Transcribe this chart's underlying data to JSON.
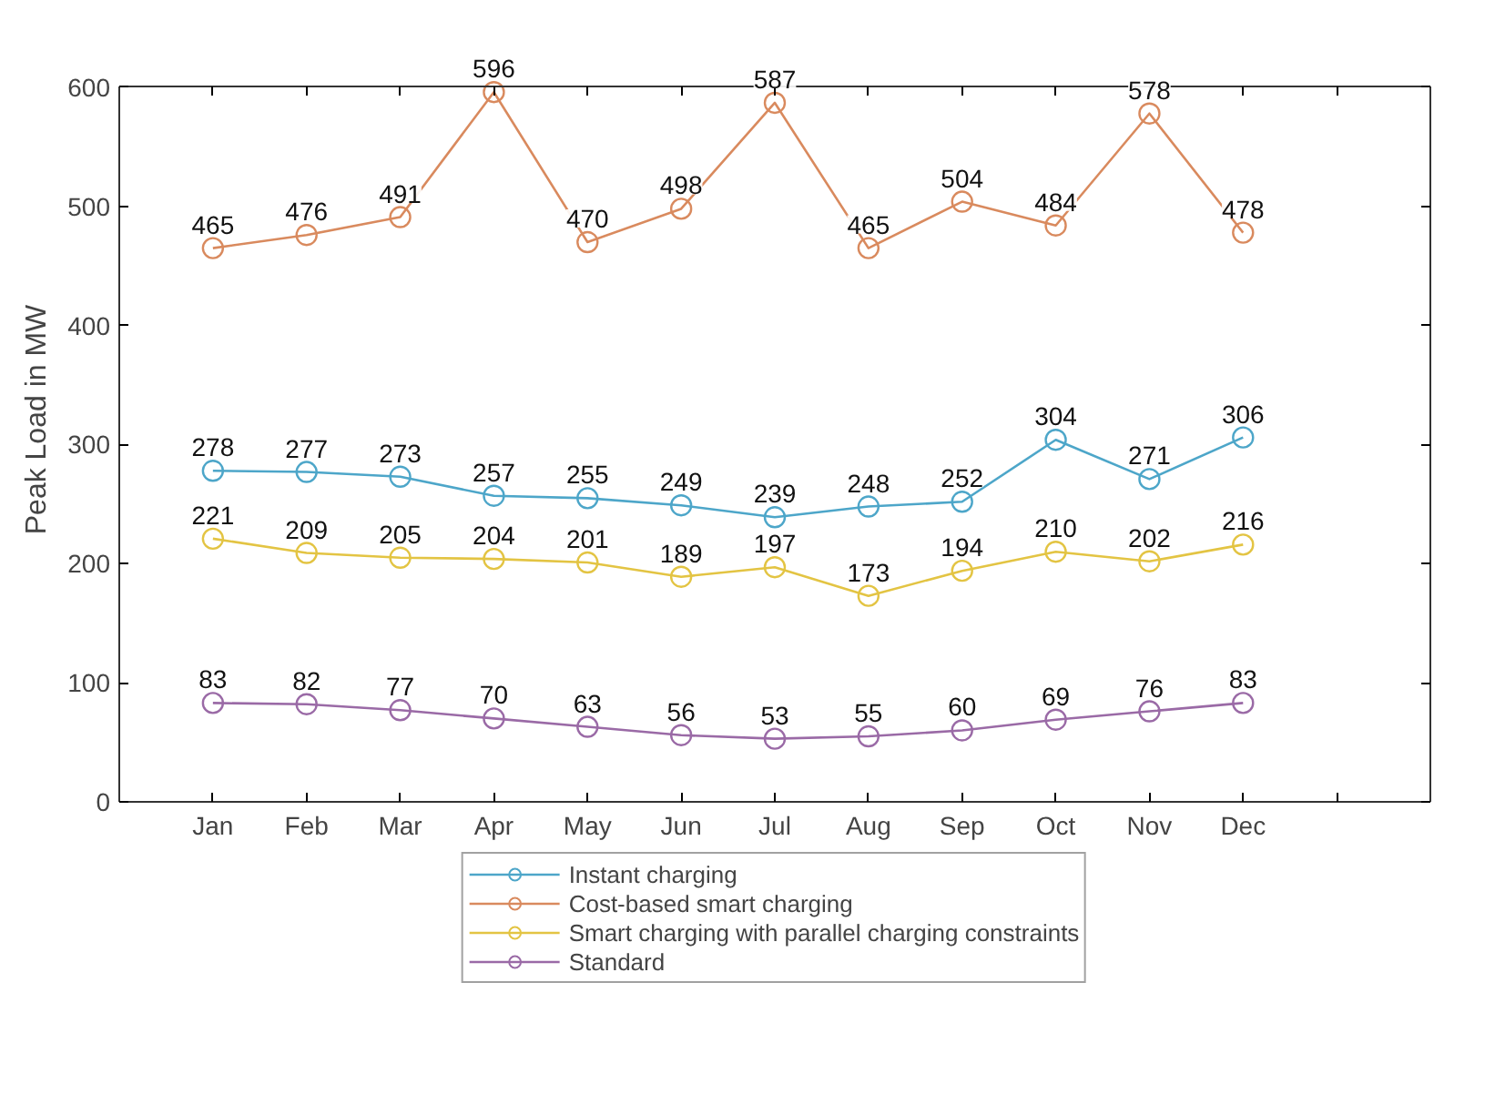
{
  "chart_data": {
    "type": "line",
    "ylabel": "Peak Load in MW",
    "categories": [
      "Jan",
      "Feb",
      "Mar",
      "Apr",
      "May",
      "Jun",
      "Jul",
      "Aug",
      "Sep",
      "Oct",
      "Nov",
      "Dec",
      null
    ],
    "series": [
      {
        "name": "Instant charging",
        "color": "#4da6c9",
        "values": [
          278,
          277,
          273,
          257,
          255,
          249,
          239,
          248,
          252,
          304,
          271,
          306,
          null
        ]
      },
      {
        "name": "Cost-based smart charging",
        "color": "#d98a5e",
        "values": [
          465,
          476,
          491,
          596,
          470,
          498,
          587,
          465,
          504,
          484,
          578,
          478,
          null
        ]
      },
      {
        "name": "Smart charging with parallel charging constraints",
        "color": "#e3c443",
        "values": [
          221,
          209,
          205,
          204,
          201,
          189,
          197,
          173,
          194,
          210,
          202,
          216,
          null
        ]
      },
      {
        "name": "Standard",
        "color": "#9a6aa6",
        "values": [
          83,
          82,
          77,
          70,
          63,
          56,
          53,
          55,
          60,
          69,
          76,
          83,
          null
        ]
      }
    ],
    "ylim": [
      0,
      600
    ],
    "yticks": [
      0,
      100,
      200,
      300,
      400,
      500,
      600
    ],
    "grid": false,
    "legend": "bottom",
    "marker": "circle",
    "line_style": "solid",
    "data_labels": true
  }
}
